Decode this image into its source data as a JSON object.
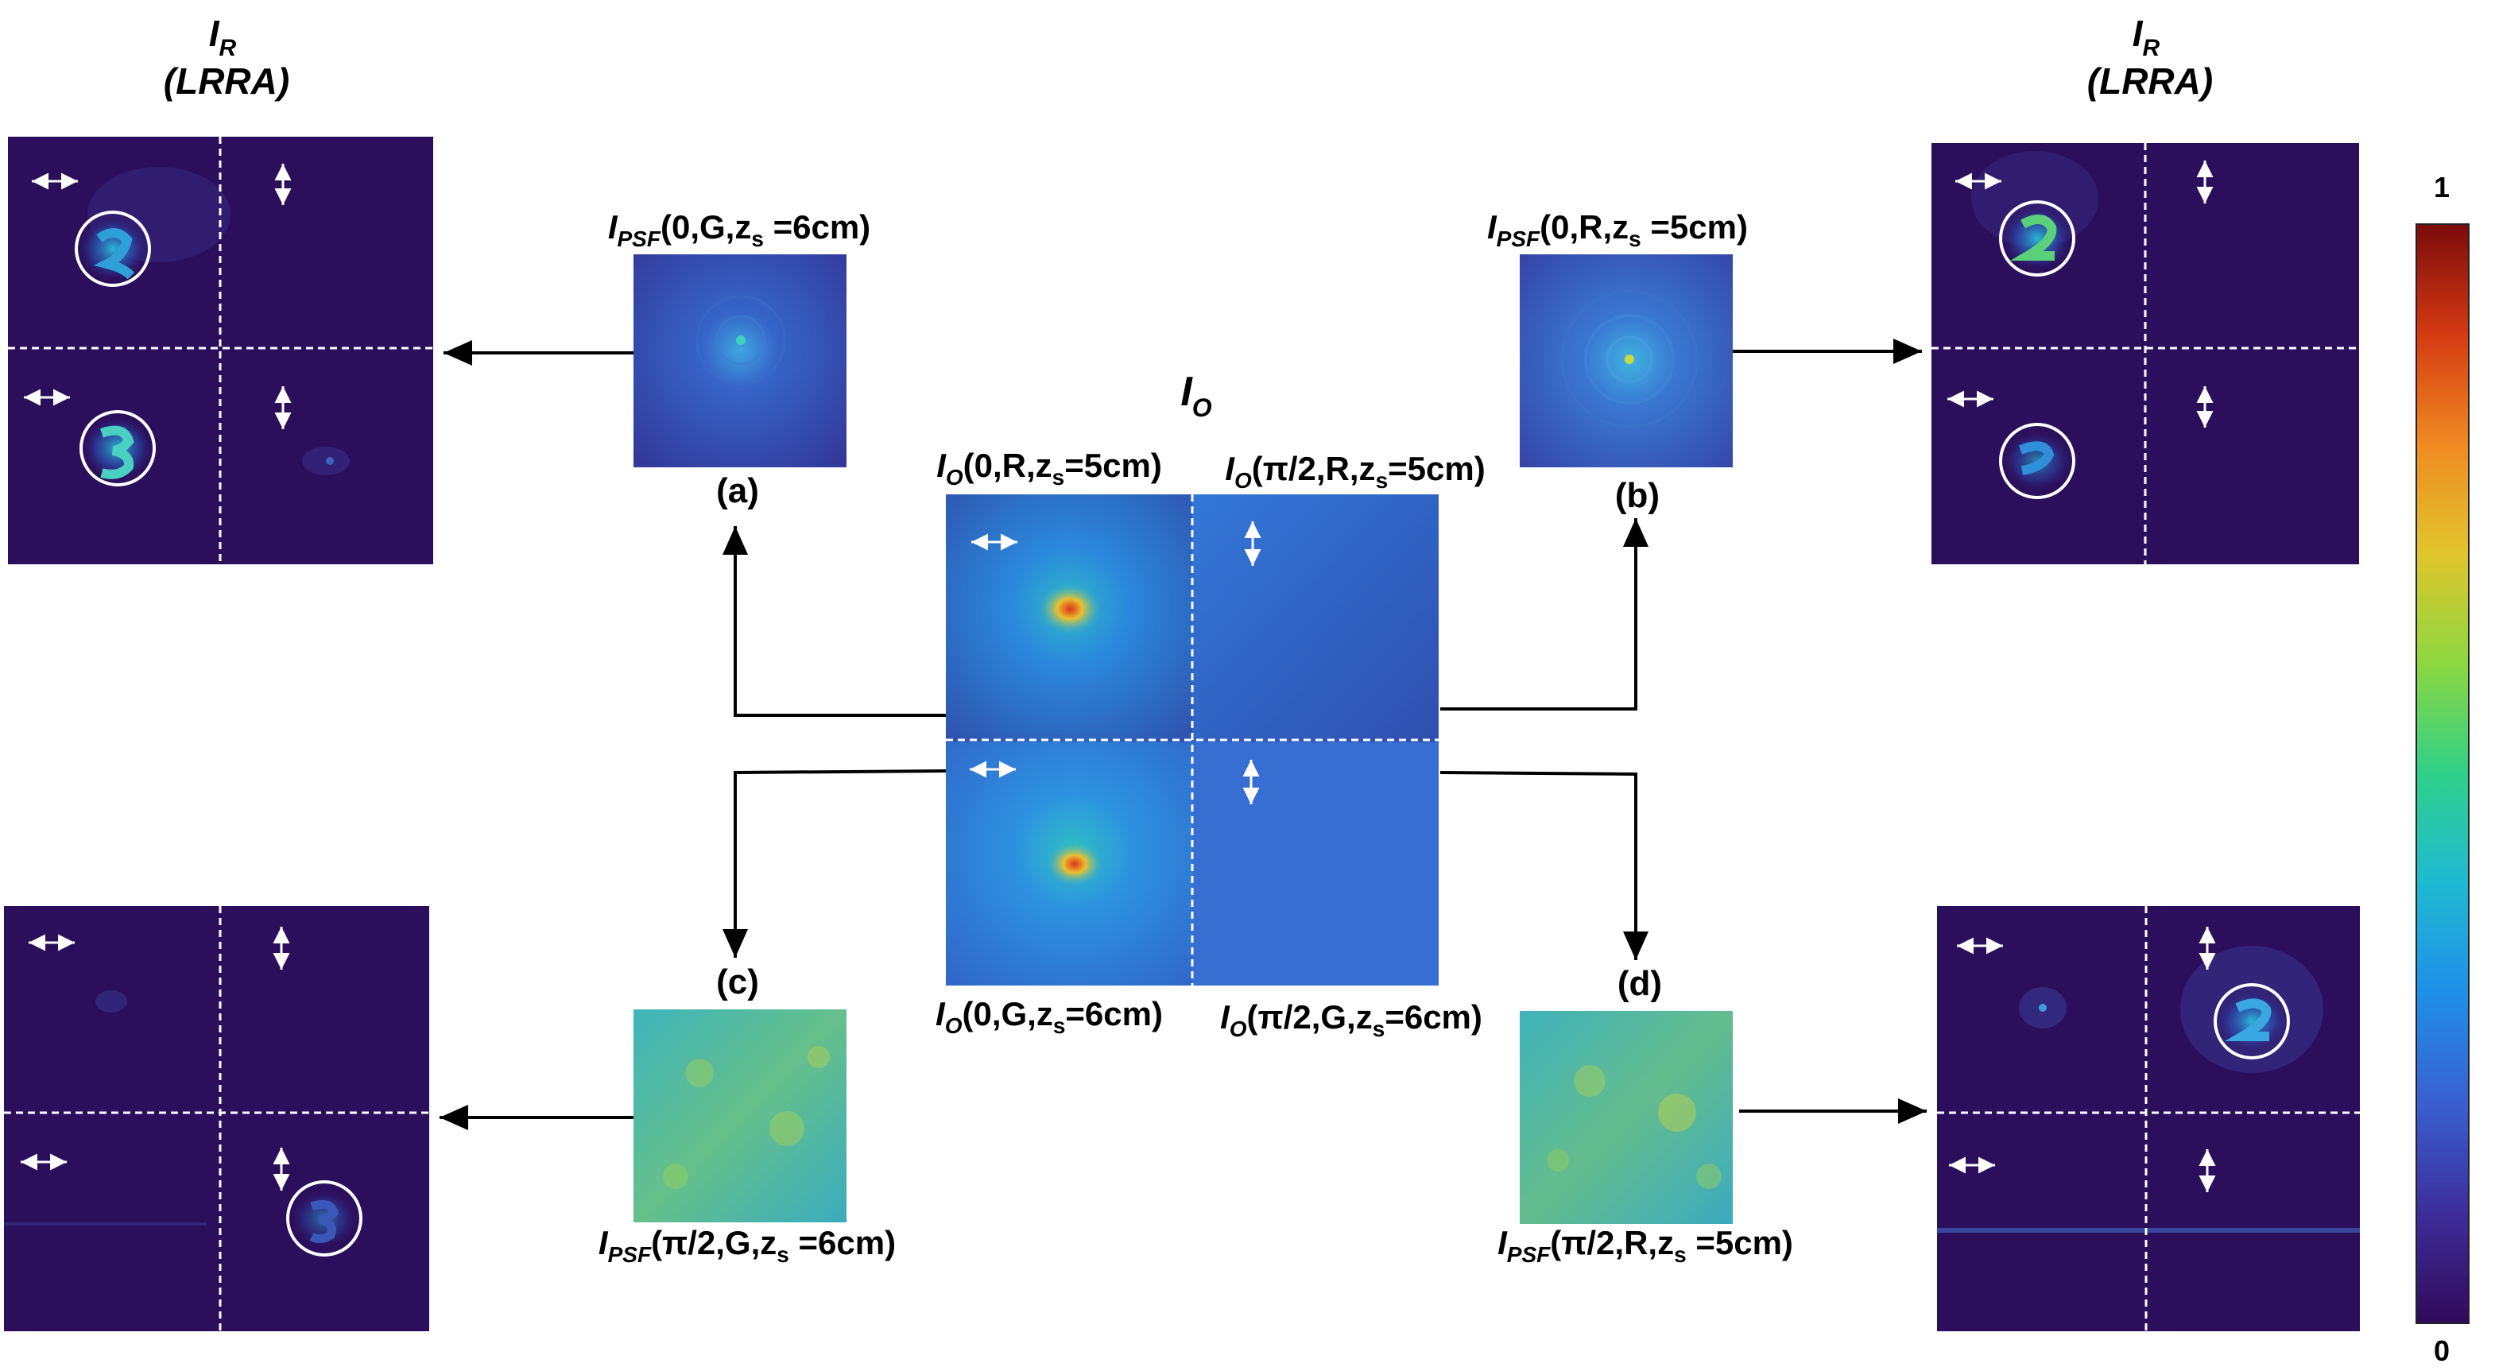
{
  "titles": {
    "ir_main": "I",
    "ir_sub": "R",
    "lrra": "(LRRA)",
    "io_main": "I",
    "io_sub": "O"
  },
  "colorbar": {
    "max_label": "1",
    "min_label": "0",
    "colors": [
      "#300a5a",
      "#3d2d9a",
      "#3a5fd0",
      "#1f8fe8",
      "#1fb9d2",
      "#2fd08a",
      "#8cd740",
      "#e0c52c",
      "#f08a22",
      "#d43a12",
      "#7a0b0b"
    ]
  },
  "labels": {
    "a": "(a)",
    "b": "(b)",
    "c": "(c)",
    "d": "(d)",
    "psf_a": {
      "main": "I",
      "sub": "PSF",
      "args": "(0,G,z",
      "zs": "s",
      "tail": " =6cm)"
    },
    "psf_b": {
      "main": "I",
      "sub": "PSF",
      "args": "(0,R,z",
      "zs": "s",
      "tail": " =5cm)"
    },
    "psf_c": {
      "main": "I",
      "sub": "PSF",
      "args": "(π/2,G,z",
      "zs": "s",
      "tail": " =6cm)"
    },
    "psf_d": {
      "main": "I",
      "sub": "PSF",
      "args": "(π/2,R,z",
      "zs": "s",
      "tail": " =5cm)"
    },
    "io_tl": {
      "main": "I",
      "sub": "O",
      "args": "(0,R,z",
      "zs": "s",
      "tail": "=5cm)"
    },
    "io_tr": {
      "main": "I",
      "sub": "O",
      "args": "(π/2,R,z",
      "zs": "s",
      "tail": "=5cm)"
    },
    "io_bl": {
      "main": "I",
      "sub": "O",
      "args": "(0,G,z",
      "zs": "s",
      "tail": "=6cm)"
    },
    "io_br": {
      "main": "I",
      "sub": "O",
      "args": "(π/2,G,z",
      "zs": "s",
      "tail": "=6cm)"
    }
  },
  "image_colors": {
    "dark_bg": "#2c0f5c",
    "psf_bg": "#3a4fb8",
    "io_bg": "#3470d8",
    "psf_speckle": "#4cc7a0",
    "white": "#ffffff"
  }
}
